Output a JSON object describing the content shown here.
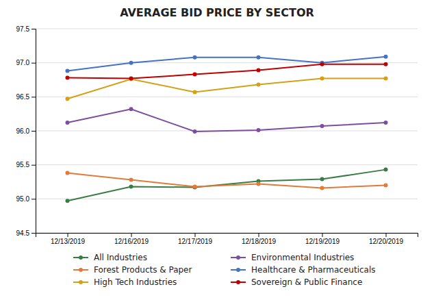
{
  "chart_data": {
    "type": "line",
    "title": "AVERAGE BID PRICE BY SECTOR",
    "categories": [
      "12/13/2019",
      "12/16/2019",
      "12/17/2019",
      "12/18/2019",
      "12/19/2019",
      "12/20/2019"
    ],
    "series": [
      {
        "name": "All Industries",
        "color": "#3a7d44",
        "values": [
          94.97,
          95.18,
          95.17,
          95.26,
          95.29,
          95.43
        ]
      },
      {
        "name": "Forest Products & Paper",
        "color": "#e07b39",
        "values": [
          95.38,
          95.28,
          95.18,
          95.22,
          95.16,
          95.2
        ]
      },
      {
        "name": "High Tech Industries",
        "color": "#d4a017",
        "values": [
          96.47,
          96.76,
          96.57,
          96.68,
          96.77,
          96.77
        ]
      },
      {
        "name": "Environmental Industries",
        "color": "#7b4ea0",
        "values": [
          96.12,
          96.32,
          95.99,
          96.01,
          96.07,
          96.12
        ]
      },
      {
        "name": "Healthcare & Pharmaceuticals",
        "color": "#4472c4",
        "values": [
          96.88,
          97.0,
          97.08,
          97.08,
          97.0,
          97.09
        ]
      },
      {
        "name": "Sovereign & Public Finance",
        "color": "#c00000",
        "values": [
          96.78,
          96.77,
          96.83,
          96.89,
          96.98,
          96.98
        ]
      }
    ],
    "ylim": [
      94.5,
      97.5
    ],
    "yticks": [
      94.5,
      {
        "value": 95.0,
        "label": "95.0"
      },
      95.5,
      {
        "value": 96.0,
        "label": "96.0"
      },
      96.5,
      {
        "value": 97.0,
        "label": "97.0"
      },
      97.5
    ],
    "grid": true,
    "legend": "bottom",
    "marker": "circle"
  }
}
